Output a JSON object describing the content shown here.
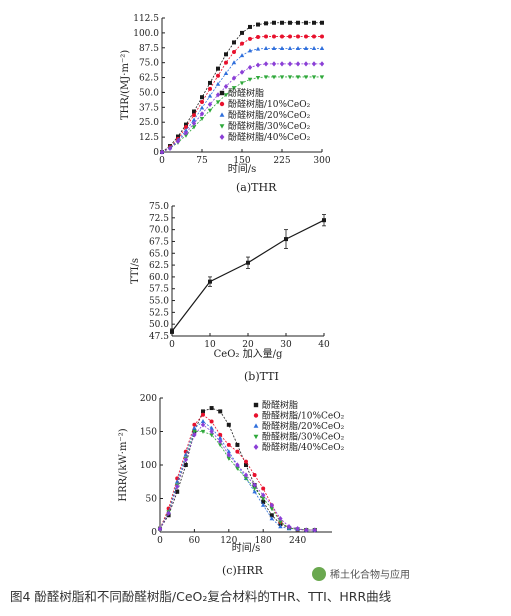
{
  "colors": {
    "s0": "#1a1a1a",
    "s1": "#e8112d",
    "s2": "#2f6fdc",
    "s3": "#2ea83a",
    "s4": "#8b3fd6"
  },
  "caption": "图4 酚醛树脂和不同酚醛树脂/CeO₂复合材料的THR、TTI、HRR曲线",
  "watermark": "稀土化合物与应用",
  "chart_data": [
    {
      "type": "line",
      "panel": "(a)THR",
      "xlabel": "时间/s",
      "ylabel": "THR/(MJ·m⁻²)",
      "xlim": [
        0,
        300
      ],
      "ylim": [
        0,
        112.5
      ],
      "xticks": [
        0,
        75,
        150,
        225,
        300
      ],
      "yticks": [
        0,
        12.5,
        25.0,
        37.5,
        50.0,
        62.5,
        75.0,
        87.5,
        100.0,
        112.5
      ],
      "ytick_labels": [
        "0",
        "12.5",
        "25.0",
        "37.5",
        "50.0",
        "62.5",
        "75.0",
        "87.5",
        "100.0",
        "112.5"
      ],
      "legend_position": "center-right",
      "series": [
        {
          "name": "酚醛树脂",
          "marker": "square",
          "x": [
            0,
            15,
            30,
            45,
            60,
            75,
            90,
            105,
            120,
            135,
            150,
            165,
            180,
            195,
            210,
            225,
            240,
            255,
            270,
            285,
            300
          ],
          "y": [
            0,
            5,
            13,
            23,
            34,
            46,
            58,
            70,
            82,
            92,
            100,
            105,
            107,
            108,
            108.5,
            108.5,
            108.5,
            108.5,
            108.5,
            108.5,
            108.5
          ]
        },
        {
          "name": "酚醛树脂/10%CeO₂",
          "marker": "circle",
          "x": [
            0,
            15,
            30,
            45,
            60,
            75,
            90,
            105,
            120,
            135,
            150,
            165,
            180,
            195,
            210,
            225,
            240,
            255,
            270,
            285,
            300
          ],
          "y": [
            0,
            4,
            11,
            21,
            31,
            42,
            53,
            64,
            75,
            84,
            91,
            95,
            96.5,
            97,
            97,
            97,
            97,
            97,
            97,
            97,
            97
          ]
        },
        {
          "name": "酚醛树脂/20%CeO₂",
          "marker": "triangle-up",
          "x": [
            0,
            15,
            30,
            45,
            60,
            75,
            90,
            105,
            120,
            135,
            150,
            165,
            180,
            195,
            210,
            225,
            240,
            255,
            270,
            285,
            300
          ],
          "y": [
            0,
            3.5,
            10,
            18,
            27,
            37,
            47,
            57,
            66,
            75,
            81,
            85,
            86.5,
            87,
            87,
            87,
            87,
            87,
            87,
            87,
            87
          ]
        },
        {
          "name": "酚醛树脂/30%CeO₂",
          "marker": "triangle-down",
          "x": [
            0,
            15,
            30,
            45,
            60,
            75,
            90,
            105,
            120,
            135,
            150,
            165,
            180,
            195,
            210,
            225,
            240,
            255,
            270,
            285,
            300
          ],
          "y": [
            0,
            3,
            8,
            14,
            21,
            28,
            35,
            42,
            48,
            54,
            58,
            61,
            62.5,
            63,
            63,
            63,
            63,
            63,
            63,
            63,
            63
          ]
        },
        {
          "name": "酚醛树脂/40%CeO₂",
          "marker": "diamond",
          "x": [
            0,
            15,
            30,
            45,
            60,
            75,
            90,
            105,
            120,
            135,
            150,
            165,
            180,
            195,
            210,
            225,
            240,
            255,
            270,
            285,
            300
          ],
          "y": [
            0,
            3,
            9,
            16,
            24,
            32,
            40,
            48,
            55,
            62,
            67,
            71,
            73,
            74,
            74,
            74,
            74,
            74,
            74,
            74,
            74
          ]
        }
      ]
    },
    {
      "type": "line",
      "panel": "(b)TTI",
      "xlabel": "CeO₂ 加入量/g",
      "ylabel": "TTI/s",
      "xlim": [
        0,
        40
      ],
      "ylim": [
        47.5,
        75.0
      ],
      "xticks": [
        0,
        10,
        20,
        30,
        40
      ],
      "yticks": [
        47.5,
        50.0,
        52.5,
        55.0,
        57.5,
        60.0,
        62.5,
        65.0,
        67.5,
        70.0,
        72.5,
        75.0
      ],
      "ytick_labels": [
        "47.5",
        "50.0",
        "52.5",
        "55.0",
        "57.5",
        "60.0",
        "62.5",
        "65.0",
        "67.5",
        "70.0",
        "72.5",
        "75.0"
      ],
      "series": [
        {
          "marker": "square",
          "x": [
            0,
            10,
            20,
            30,
            40
          ],
          "y": [
            48.5,
            59.0,
            63.0,
            68.0,
            72.0
          ],
          "err": [
            0.5,
            1.0,
            1.2,
            2.0,
            1.2
          ]
        }
      ]
    },
    {
      "type": "line",
      "panel": "(c)HRR",
      "xlabel": "时间/s",
      "ylabel": "HRR/(kW·m⁻²)",
      "xlim": [
        0,
        300
      ],
      "ylim": [
        0,
        200
      ],
      "xticks": [
        0,
        60,
        120,
        180,
        240
      ],
      "yticks": [
        0,
        50,
        100,
        150,
        200
      ],
      "ytick_labels": [
        "0",
        "50",
        "100",
        "150",
        "200"
      ],
      "legend_position": "top-right",
      "series": [
        {
          "name": "酚醛树脂",
          "marker": "square",
          "x": [
            0,
            15,
            30,
            45,
            60,
            75,
            90,
            105,
            120,
            135,
            150,
            165,
            180,
            195,
            210,
            225,
            240,
            255,
            270
          ],
          "y": [
            5,
            25,
            60,
            100,
            150,
            180,
            185,
            180,
            160,
            130,
            100,
            70,
            45,
            25,
            12,
            6,
            4,
            3,
            3
          ]
        },
        {
          "name": "酚醛树脂/10%CeO₂",
          "marker": "circle",
          "x": [
            0,
            15,
            30,
            45,
            60,
            75,
            90,
            105,
            120,
            135,
            150,
            165,
            180,
            195,
            210,
            225,
            240,
            255,
            270
          ],
          "y": [
            5,
            35,
            80,
            120,
            160,
            175,
            165,
            145,
            130,
            120,
            105,
            85,
            65,
            40,
            15,
            6,
            4,
            3,
            3
          ]
        },
        {
          "name": "酚醛树脂/20%CeO₂",
          "marker": "triangle-up",
          "x": [
            0,
            15,
            30,
            45,
            60,
            75,
            90,
            105,
            120,
            135,
            150,
            165,
            180,
            195,
            210,
            225,
            240,
            255,
            270
          ],
          "y": [
            5,
            30,
            75,
            115,
            155,
            165,
            155,
            140,
            120,
            100,
            80,
            60,
            40,
            20,
            8,
            5,
            4,
            3,
            3
          ]
        },
        {
          "name": "酚醛树脂/30%CeO₂",
          "marker": "triangle-down",
          "x": [
            0,
            15,
            30,
            45,
            60,
            75,
            90,
            105,
            120,
            135,
            150,
            165,
            180,
            195,
            210,
            225,
            240,
            255,
            270
          ],
          "y": [
            5,
            30,
            70,
            110,
            150,
            150,
            145,
            130,
            110,
            95,
            80,
            65,
            50,
            35,
            15,
            6,
            4,
            3,
            3
          ]
        },
        {
          "name": "酚醛树脂/40%CeO₂",
          "marker": "diamond",
          "x": [
            0,
            15,
            30,
            45,
            60,
            75,
            90,
            105,
            120,
            135,
            150,
            165,
            180,
            195,
            210,
            225,
            240,
            255,
            270
          ],
          "y": [
            5,
            28,
            68,
            108,
            145,
            160,
            150,
            135,
            115,
            100,
            85,
            70,
            55,
            40,
            20,
            8,
            5,
            3,
            3
          ]
        }
      ]
    }
  ]
}
